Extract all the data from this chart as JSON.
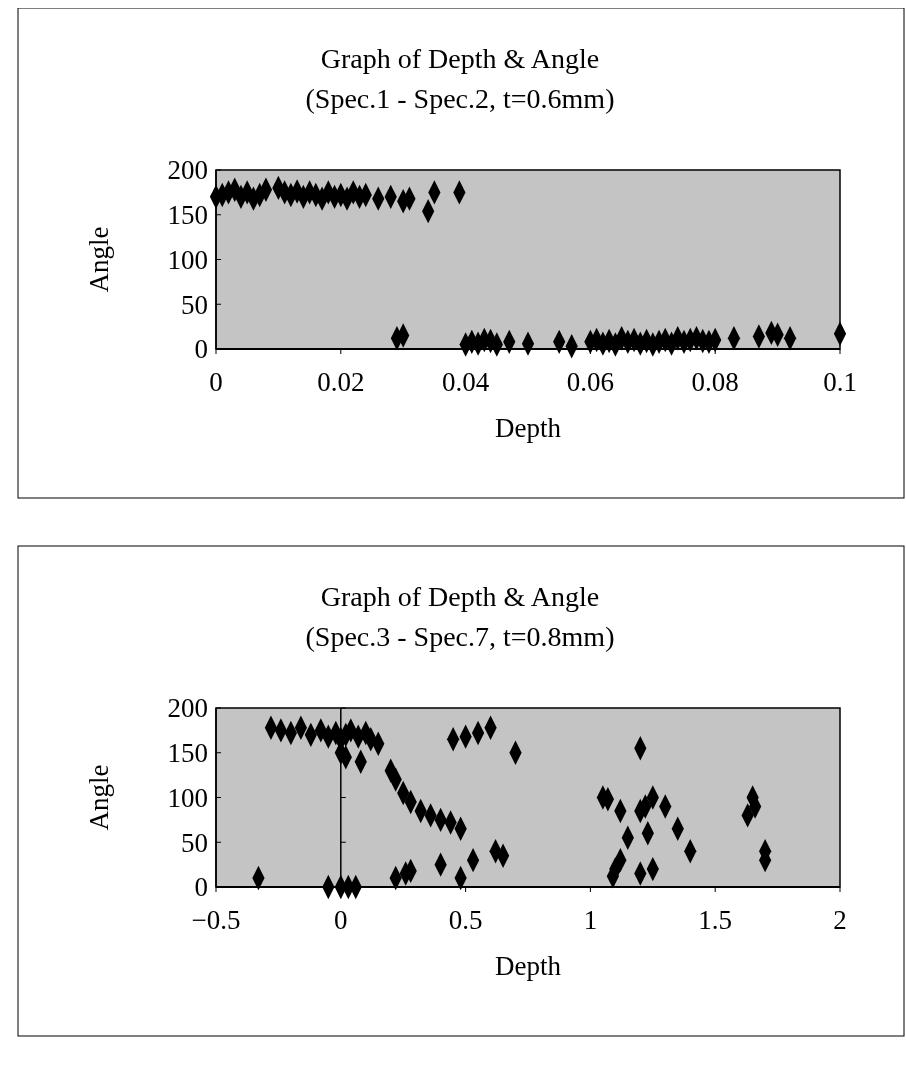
{
  "chart_data": [
    {
      "type": "scatter",
      "title": "Graph of Depth & Angle",
      "subtitle": "(Spec.1 - Spec.2, t=0.6mm)",
      "xlabel": "Depth",
      "ylabel": "Angle",
      "xlim": [
        0,
        0.1
      ],
      "xticks": [
        0,
        0.02,
        0.04,
        0.06,
        0.08,
        0.1
      ],
      "ylim": [
        0,
        200
      ],
      "yticks": [
        0,
        50,
        100,
        150,
        200
      ],
      "marker": "diamond",
      "grid": false,
      "series": [
        {
          "color": "#000000",
          "x": [
            0,
            0.001,
            0.002,
            0.003,
            0.004,
            0.005,
            0.006,
            0.007,
            0.008,
            0.01,
            0.011,
            0.012,
            0.013,
            0.014,
            0.015,
            0.016,
            0.017,
            0.018,
            0.019,
            0.02,
            0.021,
            0.022,
            0.023,
            0.024,
            0.026,
            0.028,
            0.03,
            0.031,
            0.034,
            0.035,
            0.039,
            0.029,
            0.03,
            0.04,
            0.041,
            0.042,
            0.043,
            0.044,
            0.045,
            0.047,
            0.05,
            0.055,
            0.057,
            0.06,
            0.061,
            0.062,
            0.063,
            0.064,
            0.065,
            0.066,
            0.067,
            0.068,
            0.069,
            0.07,
            0.071,
            0.072,
            0.073,
            0.074,
            0.075,
            0.076,
            0.077,
            0.078,
            0.079,
            0.08,
            0.083,
            0.087,
            0.089,
            0.09,
            0.092,
            0.1
          ],
          "values": [
            170,
            172,
            175,
            178,
            170,
            175,
            168,
            172,
            178,
            180,
            175,
            172,
            176,
            170,
            175,
            172,
            168,
            175,
            170,
            172,
            168,
            175,
            170,
            172,
            168,
            170,
            165,
            168,
            154,
            175,
            175,
            12,
            15,
            5,
            8,
            6,
            10,
            9,
            5,
            8,
            6,
            8,
            3,
            8,
            10,
            6,
            9,
            5,
            12,
            8,
            10,
            6,
            9,
            5,
            8,
            10,
            6,
            12,
            8,
            10,
            12,
            9,
            8,
            10,
            12,
            14,
            18,
            16,
            12,
            17
          ]
        }
      ]
    },
    {
      "type": "scatter",
      "title": "Graph of Depth & Angle",
      "subtitle": "(Spec.3 - Spec.7, t=0.8mm)",
      "xlabel": "Depth",
      "ylabel": "Angle",
      "xlim": [
        -0.5,
        2
      ],
      "xticks": [
        -0.5,
        0,
        0.5,
        1,
        1.5,
        2
      ],
      "ylim": [
        0,
        200
      ],
      "yticks": [
        0,
        50,
        100,
        150,
        200
      ],
      "marker": "diamond",
      "grid": false,
      "ref_lines": [
        {
          "axis": "x",
          "value": 0,
          "color": "#000000"
        }
      ],
      "series": [
        {
          "color": "#000000",
          "x": [
            -0.33,
            -0.28,
            -0.24,
            -0.2,
            -0.16,
            -0.12,
            -0.08,
            -0.05,
            -0.02,
            0.0,
            0.02,
            0.04,
            0.07,
            0.1,
            0.12,
            0.15,
            0.0,
            0.02,
            0.08,
            0.2,
            0.22,
            0.25,
            0.28,
            0.32,
            0.36,
            0.4,
            0.44,
            0.48,
            0.45,
            0.5,
            0.55,
            0.6,
            0.7,
            -0.05,
            0.0,
            0.03,
            0.06,
            0.22,
            0.26,
            0.28,
            0.4,
            0.48,
            0.53,
            0.62,
            0.65,
            1.05,
            1.07,
            1.12,
            1.15,
            1.09,
            1.1,
            1.12,
            1.2,
            1.2,
            1.22,
            1.25,
            1.23,
            1.2,
            1.25,
            1.3,
            1.35,
            1.4,
            1.63,
            1.65,
            1.66,
            1.7,
            1.7
          ],
          "values": [
            10,
            178,
            175,
            172,
            178,
            170,
            175,
            168,
            172,
            165,
            170,
            175,
            168,
            172,
            165,
            160,
            150,
            145,
            140,
            130,
            120,
            105,
            95,
            85,
            80,
            75,
            72,
            65,
            165,
            168,
            172,
            178,
            150,
            0,
            0,
            0,
            0,
            10,
            15,
            18,
            25,
            10,
            30,
            40,
            35,
            100,
            98,
            85,
            55,
            12,
            20,
            30,
            155,
            85,
            90,
            100,
            60,
            15,
            20,
            90,
            65,
            40,
            80,
            100,
            90,
            40,
            30
          ]
        }
      ]
    }
  ]
}
